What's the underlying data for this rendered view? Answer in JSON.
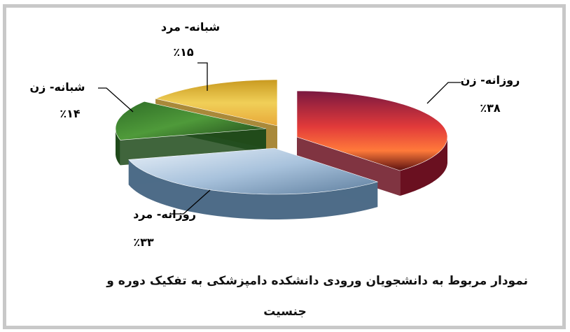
{
  "chart_data": {
    "type": "pie",
    "style": "3d-exploded-with-photo-textures",
    "title": "نمودار مربوط به دانشجویان ورودی دانشکده دامپزشکی به تفکیک دوره و جنسیت",
    "slices": [
      {
        "label": "روزانه- زن",
        "value": 38,
        "value_text": "٪۳۸",
        "color": "#d23a3a"
      },
      {
        "label": "روزانه- مرد",
        "value": 33,
        "value_text": "٪۳۳",
        "color": "#7fa6c8"
      },
      {
        "label": "شبانه- زن",
        "value": 14,
        "value_text": "٪۱۴",
        "color": "#3b7a2e"
      },
      {
        "label": "شبانه- مرد",
        "value": 15,
        "value_text": "٪۱۵",
        "color": "#d9b02a"
      }
    ]
  },
  "caption": {
    "line1": "نمودار مربوط به دانشجویان ورودی دانشکده دامپزشکی به تفکیک دوره و",
    "line2": "جنسیت"
  }
}
